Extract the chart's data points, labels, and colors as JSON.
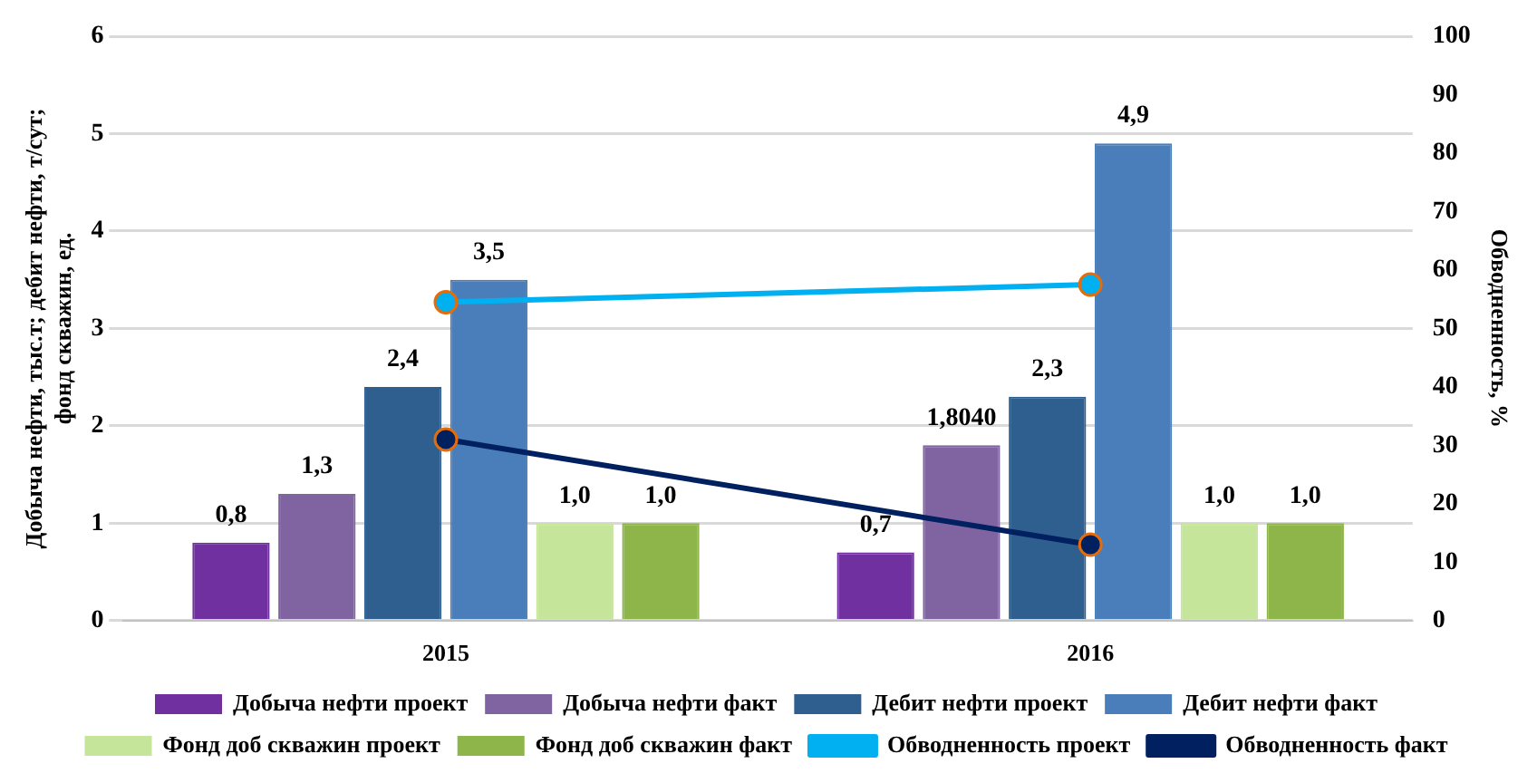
{
  "chart_data": {
    "type": "bar",
    "categories": [
      "2015",
      "2016"
    ],
    "ylabel": "Добыча нефти, тыс.т; дебит нефти, т/сут; фонд скважин, ед.",
    "y2label": "Обводненность, %",
    "ylim": [
      0,
      6
    ],
    "yticks": [
      0,
      1,
      2,
      3,
      4,
      5,
      6
    ],
    "y2lim": [
      0,
      100
    ],
    "y2ticks": [
      0,
      10,
      20,
      30,
      40,
      50,
      60,
      70,
      80,
      90,
      100
    ],
    "grid": "y",
    "legend": "bottom",
    "series": [
      {
        "name": "Добыча нефти проект",
        "color": "#7030a0",
        "values": [
          0.8,
          0.7
        ],
        "value_labels": [
          "0,8",
          "0,7"
        ]
      },
      {
        "name": "Добыча нефти факт",
        "color": "#8064a2",
        "values": [
          1.3,
          1.8
        ],
        "value_labels": [
          "1,3",
          "1,8040"
        ]
      },
      {
        "name": "Дебит нефти проект",
        "color": "#2e5f8f",
        "values": [
          2.4,
          2.3
        ],
        "value_labels": [
          "2,4",
          "2,3"
        ]
      },
      {
        "name": "Дебит нефти факт",
        "color": "#4a7ebb",
        "values": [
          3.5,
          4.9
        ],
        "value_labels": [
          "3,5",
          "4,9"
        ]
      },
      {
        "name": "Фонд доб скважин проект",
        "color": "#c4e59a",
        "values": [
          1.0,
          1.0
        ],
        "value_labels": [
          "1,0",
          "1,0"
        ]
      },
      {
        "name": "Фонд доб скважин факт",
        "color": "#8db54a",
        "values": [
          1.0,
          1.0
        ],
        "value_labels": [
          "1,0",
          "1,0"
        ]
      },
      {
        "name": "Обводненность проект",
        "type": "line",
        "axis": "y2",
        "marker": "circle",
        "color": "#00b0f0",
        "values": [
          54.5,
          57.5
        ]
      },
      {
        "name": "Обводненность факт",
        "type": "line",
        "axis": "y2",
        "marker": "circle",
        "color": "#002060",
        "values": [
          31,
          13
        ]
      }
    ]
  }
}
